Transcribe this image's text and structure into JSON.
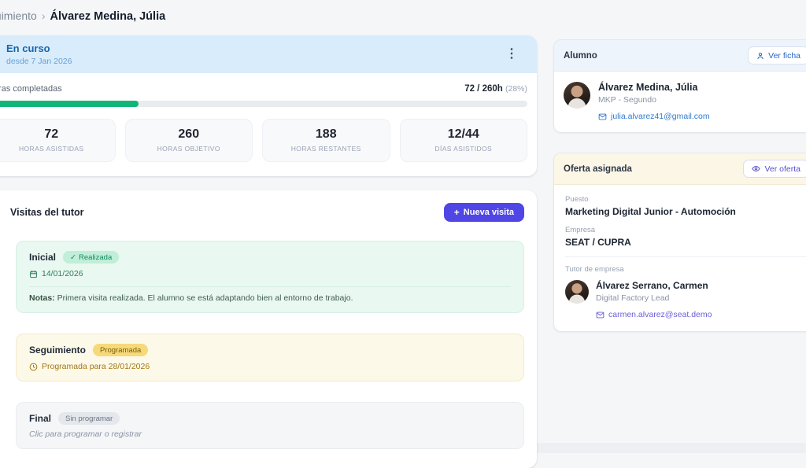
{
  "breadcrumb": {
    "section": "Seguimiento",
    "separator": "›",
    "current": "Álvarez Medina, Júlia"
  },
  "status_card": {
    "status": "En curso",
    "since": "desde 7 Jan 2026",
    "menu_icon": "⋮"
  },
  "progress": {
    "label": "Horas completadas",
    "value": "72 / 260h",
    "percent_label": "(28%)",
    "percent": 28
  },
  "stats": [
    {
      "value": "72",
      "label": "HORAS ASISTIDAS"
    },
    {
      "value": "260",
      "label": "HORAS OBJETIVO"
    },
    {
      "value": "188",
      "label": "HORAS RESTANTES"
    },
    {
      "value": "12/44",
      "label": "DÍAS ASISTIDOS"
    }
  ],
  "visits": {
    "title": "Visitas del tutor",
    "new_button_label": "Nueva visita",
    "plus_icon": "+",
    "items": {
      "0": {
        "name": "Inicial",
        "badge_check": "✓",
        "badge": "Realizada",
        "date": "14/01/2026",
        "notes_label": "Notas:",
        "notes": "Primera visita realizada. El alumno se está adaptando bien al entorno de trabajo."
      },
      "1": {
        "name": "Seguimiento",
        "badge": "Programada",
        "scheduled_text": "Programada para 28/01/2026"
      },
      "2": {
        "name": "Final",
        "badge": "Sin programar",
        "hint": "Clic para programar o registrar"
      }
    }
  },
  "student_card": {
    "title": "Alumno",
    "action_label": "Ver ficha",
    "name": "Álvarez Medina, Júlia",
    "program": "MKP - Segundo",
    "email": "julia.alvarez41@gmail.com"
  },
  "offer_card": {
    "title": "Oferta asignada",
    "action_label": "Ver oferta",
    "position_label": "Puesto",
    "position": "Marketing Digital Junior - Automoción",
    "company_label": "Empresa",
    "company": "SEAT / CUPRA",
    "tutor_label": "Tutor de empresa",
    "tutor_name": "Álvarez Serrano, Carmen",
    "tutor_role": "Digital Factory Lead",
    "tutor_email": "carmen.alvarez@seat.demo"
  },
  "colors": {
    "status_header_bg": "#d9ecfb",
    "status_title": "#1766ad",
    "progress_green": "#12b577",
    "accent_indigo": "#4f46e5",
    "visit_done_bg": "#e9f8f0",
    "visit_scheduled_bg": "#fdf9e8",
    "visit_pending_bg": "#f5f6f8",
    "student_header_bg": "#eef4fc",
    "offer_header_bg": "#fcf6e6",
    "link_blue": "#2f7bd4",
    "link_purple": "#6a5fd8"
  }
}
